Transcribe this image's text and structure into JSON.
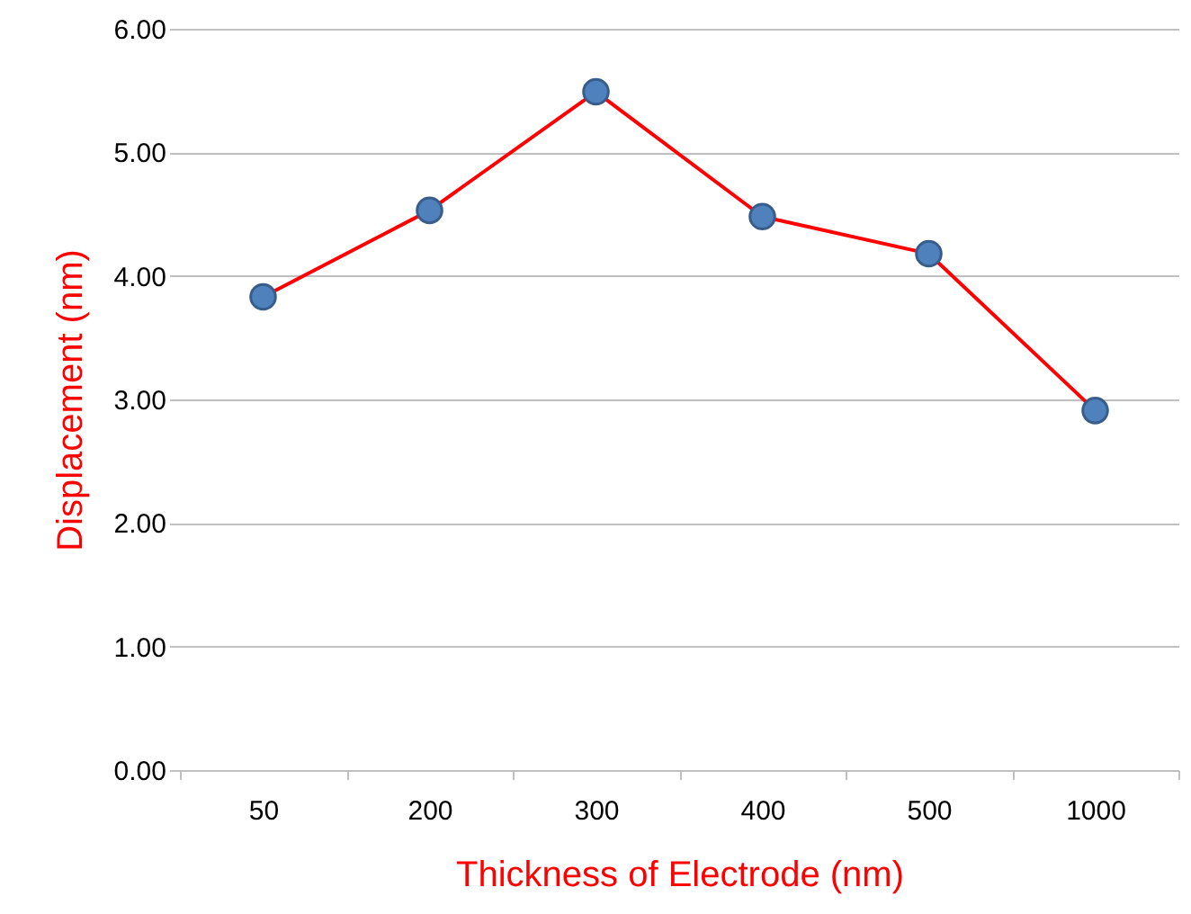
{
  "chart_data": {
    "type": "line",
    "xlabel": "Thickness of Electrode (nm)",
    "ylabel": "Displacement (nm)",
    "categories": [
      "50",
      "200",
      "300",
      "400",
      "500",
      "1000"
    ],
    "series": [
      {
        "color": "#ff0000",
        "values": [
          3.83,
          4.53,
          5.49,
          4.48,
          4.18,
          2.91
        ]
      }
    ],
    "ylim": [
      0,
      6
    ],
    "yticks": [
      {
        "value": 0,
        "label": "0.00"
      },
      {
        "value": 1,
        "label": "1.00"
      },
      {
        "value": 2,
        "label": "2.00"
      },
      {
        "value": 3,
        "label": "3.00"
      },
      {
        "value": 4,
        "label": "4.00"
      },
      {
        "value": 5,
        "label": "5.00"
      },
      {
        "value": 6,
        "label": "6.00"
      }
    ],
    "grid": "y",
    "marker": "circle",
    "line_style": "solid"
  }
}
